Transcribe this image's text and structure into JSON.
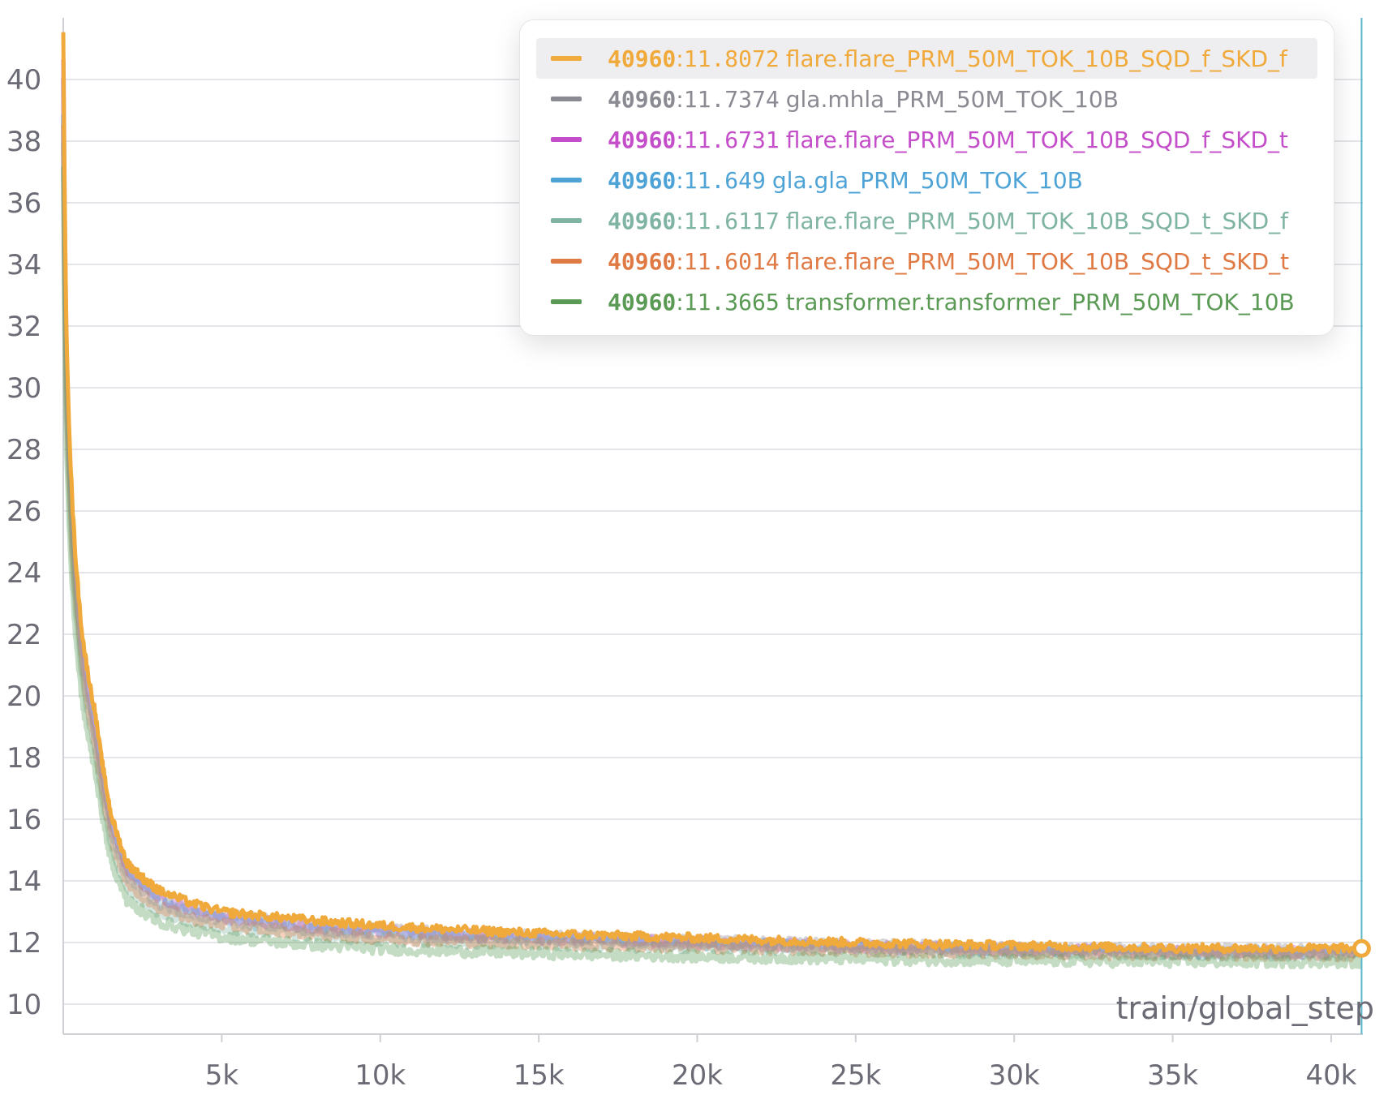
{
  "chart_data": {
    "type": "line",
    "xlabel": "train/global_step",
    "ylabel": "",
    "xlim": [
      0,
      41000
    ],
    "ylim": [
      9,
      42
    ],
    "x_ticks": [
      {
        "value": 5000,
        "label": "5k"
      },
      {
        "value": 10000,
        "label": "10k"
      },
      {
        "value": 15000,
        "label": "15k"
      },
      {
        "value": 20000,
        "label": "20k"
      },
      {
        "value": 25000,
        "label": "25k"
      },
      {
        "value": 30000,
        "label": "30k"
      },
      {
        "value": 35000,
        "label": "35k"
      },
      {
        "value": 40000,
        "label": "40k"
      }
    ],
    "y_ticks": [
      10,
      12,
      14,
      16,
      18,
      20,
      22,
      24,
      26,
      28,
      30,
      32,
      34,
      36,
      38,
      40
    ],
    "grid": true,
    "legend_position": "top-right",
    "hover_step": 40960,
    "series": [
      {
        "name": "flare.flare_PRM_50M_TOK_10B_SQD_f_SKD_f",
        "step_label": "40960",
        "value_label": "11.8072",
        "color": "#f0a93b",
        "highlight": true,
        "x": [
          0,
          100,
          300,
          600,
          1000,
          1500,
          2000,
          3000,
          4000,
          5000,
          7000,
          10000,
          15000,
          20000,
          25000,
          30000,
          35000,
          40960
        ],
        "y": [
          41.5,
          32,
          26,
          22,
          19.5,
          16.2,
          14.6,
          13.7,
          13.3,
          13.0,
          12.8,
          12.55,
          12.3,
          12.15,
          12.0,
          11.9,
          11.82,
          11.81
        ]
      },
      {
        "name": "gla.mhla_PRM_50M_TOK_10B",
        "step_label": "40960",
        "value_label": "11.7374",
        "color": "#8a8a92",
        "highlight": false,
        "x": [
          0,
          100,
          300,
          600,
          1000,
          1500,
          2000,
          3000,
          4000,
          5000,
          7000,
          10000,
          15000,
          20000,
          25000,
          30000,
          35000,
          40960
        ],
        "y": [
          40,
          30.5,
          25,
          21.2,
          18.8,
          15.8,
          14.4,
          13.5,
          13.1,
          12.9,
          12.65,
          12.4,
          12.2,
          12.05,
          11.92,
          11.83,
          11.76,
          11.74
        ]
      },
      {
        "name": "flare.flare_PRM_50M_TOK_10B_SQD_f_SKD_t",
        "step_label": "40960",
        "value_label": "11.6731",
        "color": "#c44ec9",
        "highlight": false,
        "x": [
          0,
          100,
          300,
          600,
          1000,
          1500,
          2000,
          3000,
          4000,
          5000,
          7000,
          10000,
          15000,
          20000,
          25000,
          30000,
          35000,
          40960
        ],
        "y": [
          40.5,
          31,
          25.3,
          21.4,
          19,
          15.9,
          14.4,
          13.5,
          13.1,
          12.85,
          12.6,
          12.35,
          12.15,
          12.0,
          11.86,
          11.77,
          11.7,
          11.67
        ]
      },
      {
        "name": "gla.gla_PRM_50M_TOK_10B",
        "step_label": "40960",
        "value_label": "11.649",
        "color": "#4ea3d6",
        "highlight": false,
        "x": [
          0,
          100,
          300,
          600,
          1000,
          1500,
          2000,
          3000,
          4000,
          5000,
          7000,
          10000,
          15000,
          20000,
          25000,
          30000,
          35000,
          40960
        ],
        "y": [
          39,
          30,
          24.8,
          21,
          18.6,
          15.6,
          14.2,
          13.3,
          12.95,
          12.75,
          12.5,
          12.3,
          12.1,
          11.96,
          11.84,
          11.75,
          11.68,
          11.65
        ]
      },
      {
        "name": "flare.flare_PRM_50M_TOK_10B_SQD_t_SKD_f",
        "step_label": "40960",
        "value_label": "11.6117",
        "color": "#7fb3a3",
        "highlight": false,
        "x": [
          0,
          100,
          300,
          600,
          1000,
          1500,
          2000,
          3000,
          4000,
          5000,
          7000,
          10000,
          15000,
          20000,
          25000,
          30000,
          35000,
          40960
        ],
        "y": [
          38,
          29,
          24,
          20.5,
          18.2,
          15.2,
          13.8,
          13.0,
          12.7,
          12.5,
          12.3,
          12.1,
          11.95,
          11.85,
          11.75,
          11.68,
          11.63,
          11.61
        ]
      },
      {
        "name": "flare.flare_PRM_50M_TOK_10B_SQD_t_SKD_t",
        "step_label": "40960",
        "value_label": "11.6014",
        "color": "#e07a45",
        "highlight": false,
        "x": [
          0,
          100,
          300,
          600,
          1000,
          1500,
          2000,
          3000,
          4000,
          5000,
          7000,
          10000,
          15000,
          20000,
          25000,
          30000,
          35000,
          40960
        ],
        "y": [
          38.5,
          29.5,
          24.3,
          20.8,
          18.4,
          15.4,
          14.0,
          13.15,
          12.8,
          12.6,
          12.38,
          12.15,
          11.98,
          11.86,
          11.75,
          11.67,
          11.62,
          11.6
        ]
      },
      {
        "name": "transformer.transformer_PRM_50M_TOK_10B",
        "step_label": "40960",
        "value_label": "11.3665",
        "color": "#5a9a55",
        "highlight": false,
        "x": [
          0,
          100,
          300,
          600,
          1000,
          1500,
          2000,
          3000,
          4000,
          5000,
          7000,
          10000,
          15000,
          20000,
          25000,
          30000,
          35000,
          40960
        ],
        "y": [
          37,
          28,
          23.2,
          19.8,
          17.6,
          14.7,
          13.4,
          12.7,
          12.4,
          12.2,
          12.0,
          11.8,
          11.65,
          11.55,
          11.47,
          11.41,
          11.38,
          11.37
        ]
      }
    ]
  }
}
